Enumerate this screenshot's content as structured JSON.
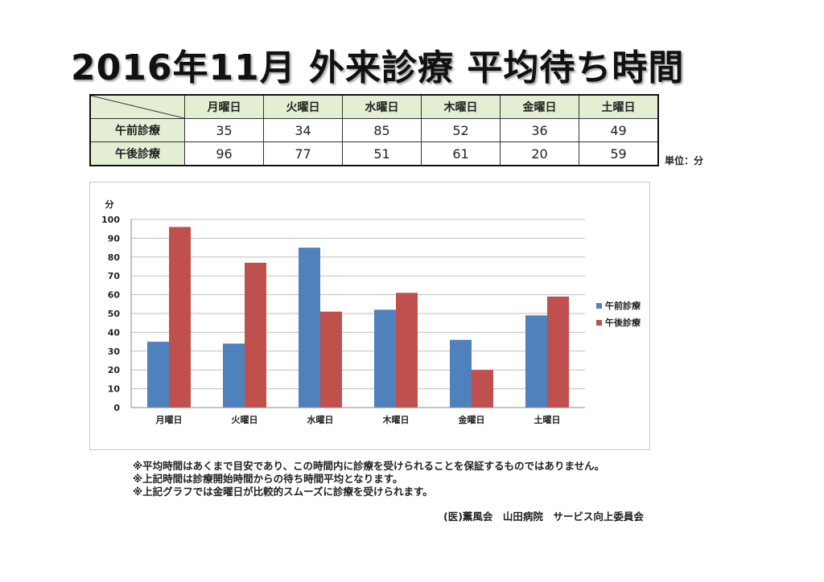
{
  "title": "2016年11月 外来診療 平均待ち時間",
  "table": {
    "days": [
      "月曜日",
      "火曜日",
      "水曜日",
      "木曜日",
      "金曜日",
      "土曜日"
    ],
    "rows": [
      {
        "label": "午前診療",
        "values": [
          "35",
          "34",
          "85",
          "52",
          "36",
          "49"
        ]
      },
      {
        "label": "午後診療",
        "values": [
          "96",
          "77",
          "51",
          "61",
          "20",
          "59"
        ]
      }
    ],
    "unit": "単位：分"
  },
  "chart_data": {
    "type": "bar",
    "title": "",
    "xlabel": "",
    "ylabel": "分",
    "categories": [
      "月曜日",
      "火曜日",
      "水曜日",
      "木曜日",
      "金曜日",
      "土曜日"
    ],
    "series": [
      {
        "name": "午前診療",
        "values": [
          35,
          34,
          85,
          52,
          36,
          49
        ],
        "color": "#4f81bd"
      },
      {
        "name": "午後診療",
        "values": [
          96,
          77,
          51,
          61,
          20,
          59
        ],
        "color": "#c0504d"
      }
    ],
    "ylim": [
      0,
      100
    ],
    "yticks": [
      0,
      10,
      20,
      30,
      40,
      50,
      60,
      70,
      80,
      90,
      100
    ],
    "grid": true,
    "legend": "right"
  },
  "notes": [
    "※平均時間はあくまで目安であり、この時間内に診療を受けられることを保証するものではありません。",
    "※上記時間は診療開始時間からの待ち時間平均となります。",
    "※上記グラフでは金曜日が比較的スムーズに診療を受けられます。"
  ],
  "footer": "(医)薫風会　山田病院　サービス向上委員会",
  "colors": {
    "header_bg": "#e3eed3",
    "morning": "#4f81bd",
    "afternoon": "#c0504d",
    "grid": "#bfbfbf"
  }
}
